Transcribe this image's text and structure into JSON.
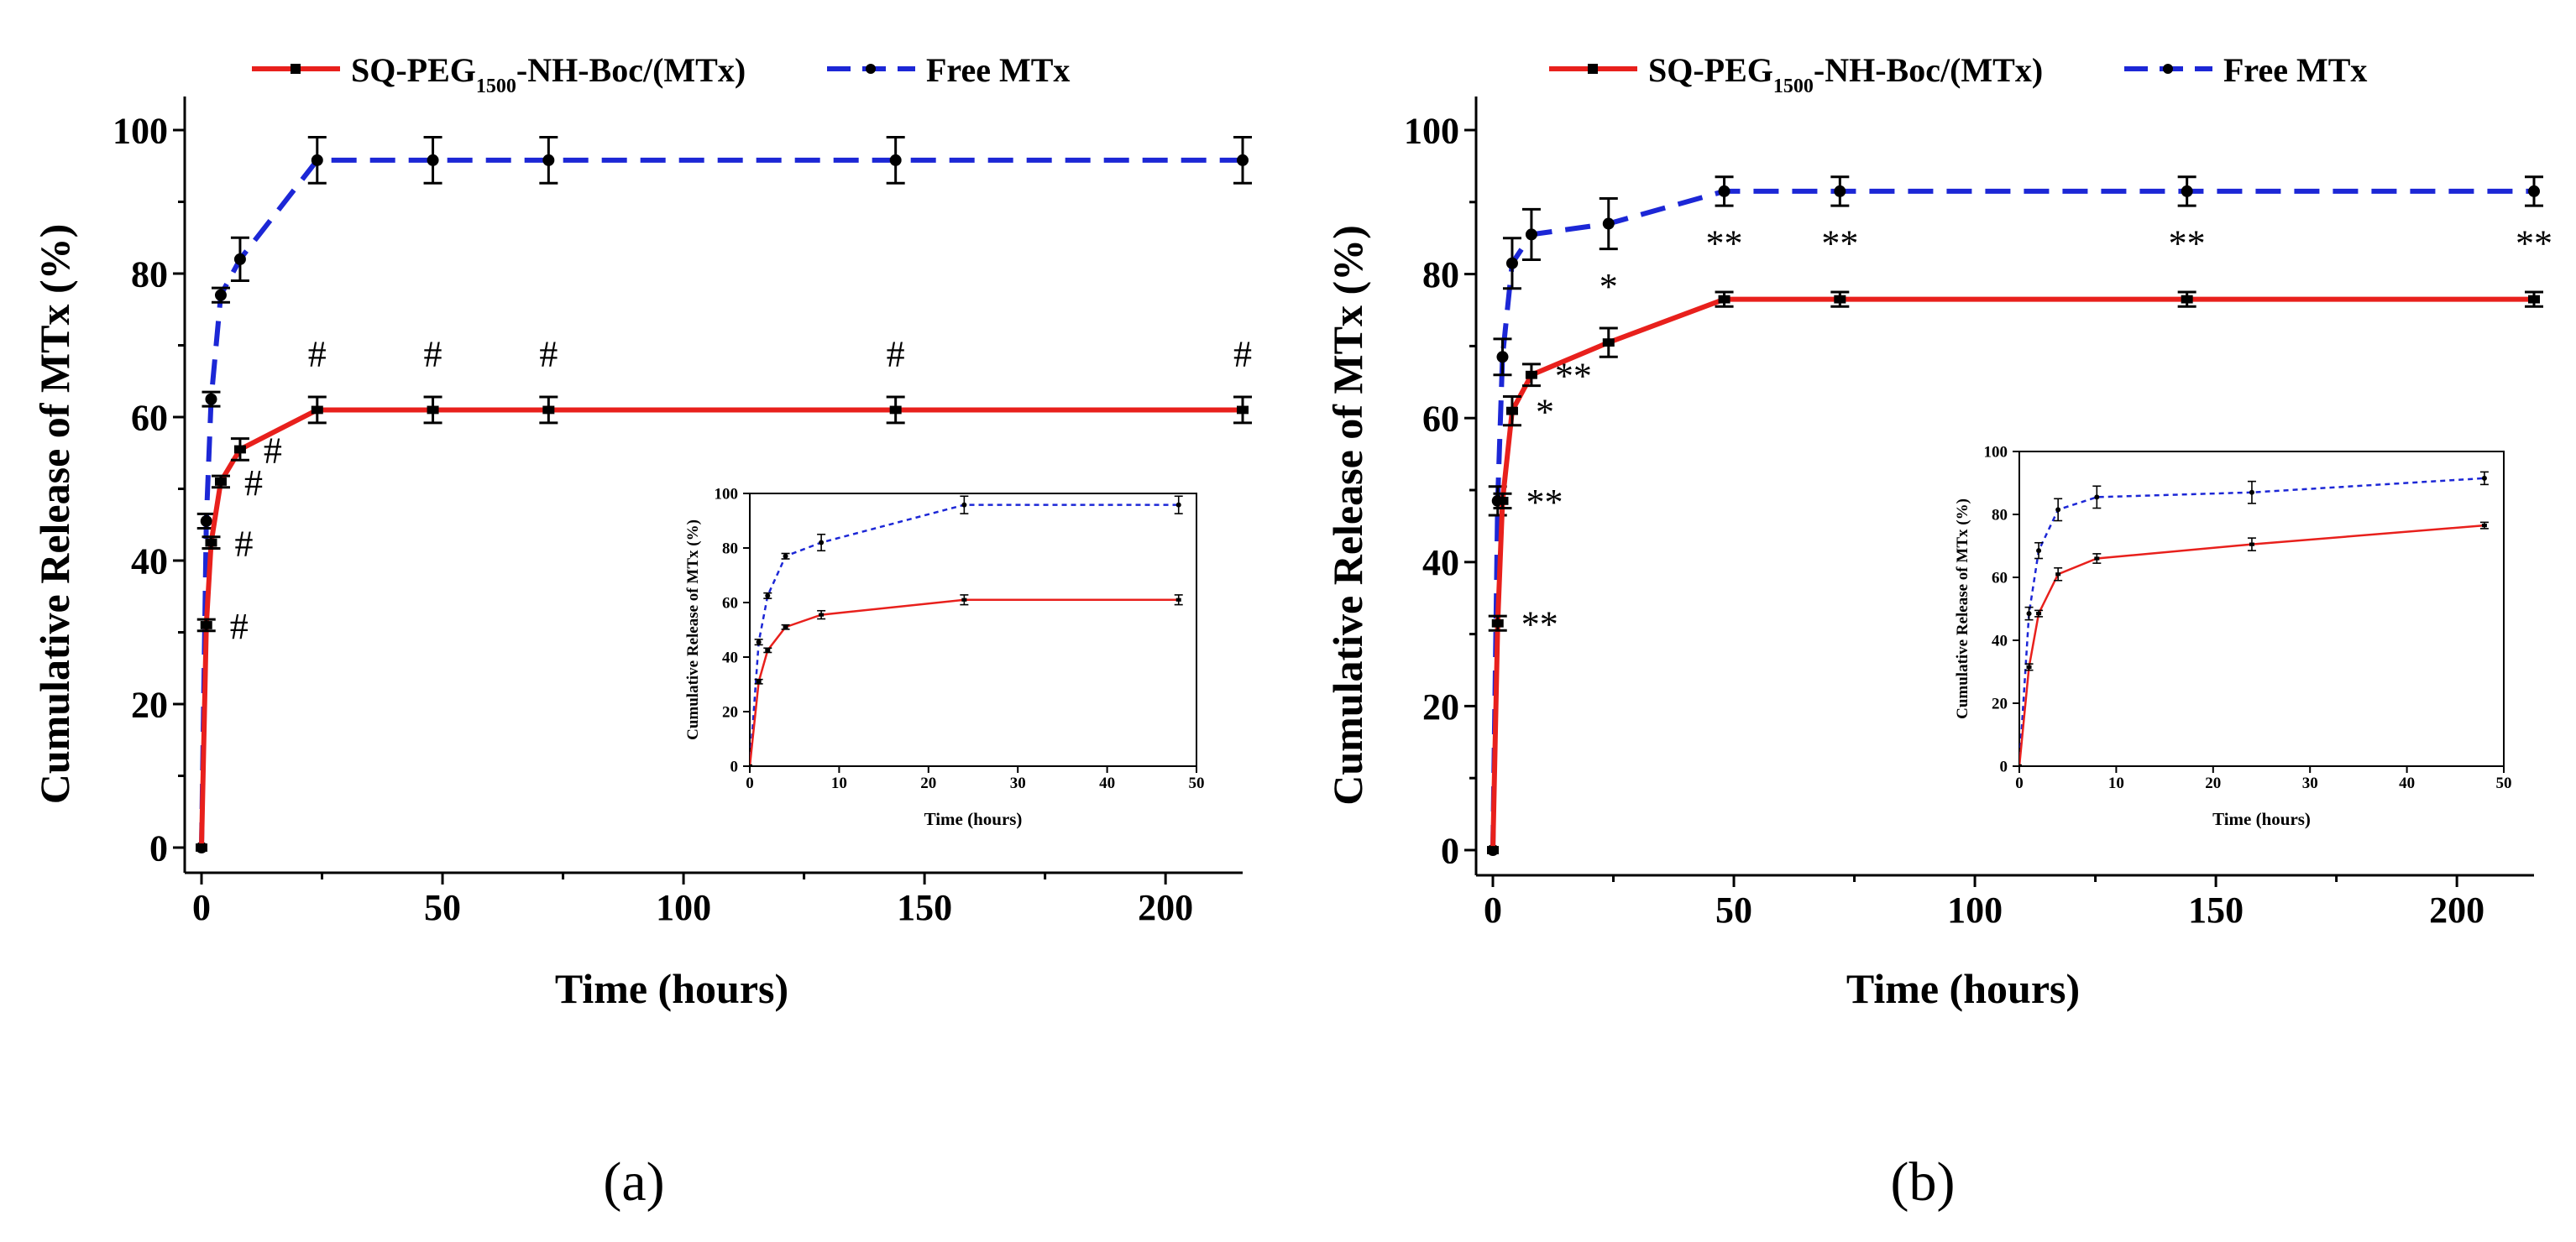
{
  "legend": {
    "series1_html": "SQ-PEG<tspan baseline-shift=\"sub\" font-size=\"24\">1500</tspan>-NH-Boc/(MTx)",
    "series1_label": "SQ-PEG1500-NH-Boc/(MTx)",
    "series2_label": "Free MTx"
  },
  "colors": {
    "red": "#e8201c",
    "blue": "#1c27d6",
    "black": "#000000"
  },
  "chart_data": [
    {
      "panel_label": "(a)",
      "type": "line",
      "xlabel": "Time (hours)",
      "ylabel": "Cumulative Release of MTx (%)",
      "xlim": [
        0,
        216
      ],
      "ylim": [
        0,
        100
      ],
      "xticks": [
        0,
        50,
        100,
        150,
        200
      ],
      "yticks": [
        0,
        20,
        40,
        60,
        80,
        100
      ],
      "series": [
        {
          "name": "SQ-PEG1500-NH-Boc/(MTx)",
          "color": "#e8201c",
          "dash": "solid",
          "x": [
            0,
            1,
            2,
            4,
            8,
            24,
            48,
            72,
            144,
            216
          ],
          "y": [
            0,
            31,
            42.5,
            51,
            55.5,
            61,
            61,
            61,
            61,
            61
          ],
          "err": [
            0,
            0.8,
            0.8,
            0.8,
            1.5,
            1.8,
            1.8,
            1.8,
            1.8,
            1.8
          ],
          "labels": [
            "",
            "#",
            "#",
            "#",
            "#",
            "#",
            "#",
            "#",
            "#",
            "#"
          ]
        },
        {
          "name": "Free MTx",
          "color": "#1c27d6",
          "dash": "dashed",
          "x": [
            0,
            1,
            2,
            4,
            8,
            24,
            48,
            72,
            144,
            216
          ],
          "y": [
            0,
            45.5,
            62.5,
            77,
            82,
            95.8,
            95.8,
            95.8,
            95.8,
            95.8
          ],
          "err": [
            0,
            1,
            1,
            1,
            3,
            3.2,
            3.2,
            3.2,
            3.2,
            3.2
          ],
          "labels": []
        }
      ],
      "inset": {
        "xlabel": "Time (hours)",
        "ylabel": "Cumulative Release of MTx (%)",
        "xlim": [
          0,
          50
        ],
        "ylim": [
          0,
          100
        ],
        "xticks": [
          0,
          10,
          20,
          30,
          40,
          50
        ],
        "yticks": [
          0,
          20,
          40,
          60,
          80,
          100
        ]
      }
    },
    {
      "panel_label": "(b)",
      "type": "line",
      "xlabel": "Time (hours)",
      "ylabel": "Cumulative Release of MTx (%)",
      "xlim": [
        0,
        216
      ],
      "ylim": [
        0,
        100
      ],
      "xticks": [
        0,
        50,
        100,
        150,
        200
      ],
      "yticks": [
        0,
        20,
        40,
        60,
        80,
        100
      ],
      "series": [
        {
          "name": "SQ-PEG1500-NH-Boc/(MTx)",
          "color": "#e8201c",
          "dash": "solid",
          "x": [
            0,
            1,
            2,
            4,
            8,
            24,
            48,
            72,
            144,
            216
          ],
          "y": [
            0,
            31.5,
            48.5,
            61,
            66,
            70.5,
            76.5,
            76.5,
            76.5,
            76.5
          ],
          "err": [
            0,
            1,
            1,
            2,
            1.5,
            2,
            1,
            1,
            1,
            1
          ],
          "labels": [
            "",
            "**",
            "**",
            "*",
            "**",
            "*",
            "**",
            "**",
            "**",
            "**"
          ]
        },
        {
          "name": "Free MTx",
          "color": "#1c27d6",
          "dash": "dashed",
          "x": [
            0,
            1,
            2,
            4,
            8,
            24,
            48,
            72,
            144,
            216
          ],
          "y": [
            0,
            48.5,
            68.5,
            81.5,
            85.5,
            87,
            91.5,
            91.5,
            91.5,
            91.5
          ],
          "err": [
            0,
            2,
            2.5,
            3.5,
            3.5,
            3.5,
            2,
            2,
            2,
            2
          ],
          "labels": []
        }
      ],
      "inset": {
        "xlabel": "Time (hours)",
        "ylabel": "Cumulative Release of MTx (%)",
        "xlim": [
          0,
          50
        ],
        "ylim": [
          0,
          100
        ],
        "xticks": [
          0,
          10,
          20,
          30,
          40,
          50
        ],
        "yticks": [
          0,
          20,
          40,
          60,
          80,
          100
        ]
      }
    }
  ]
}
